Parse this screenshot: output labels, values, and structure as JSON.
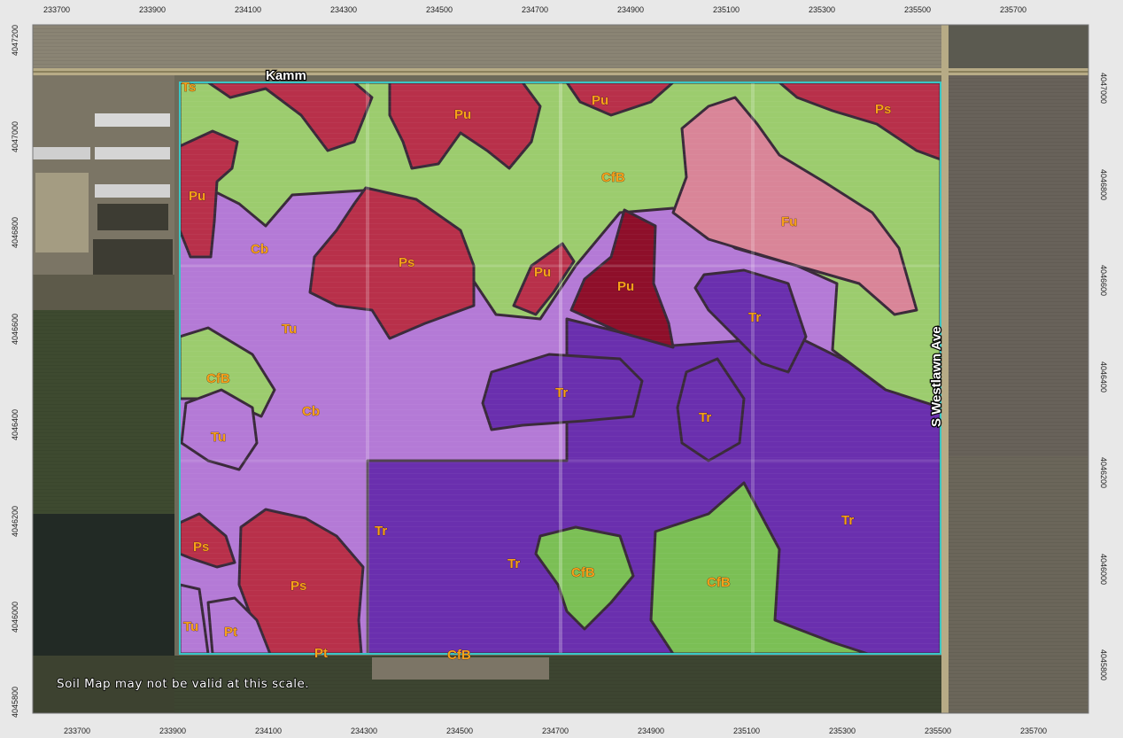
{
  "map": {
    "top_axis_ticks": [
      "233700",
      "233900",
      "234100",
      "234300",
      "234500",
      "234700",
      "234900",
      "235100",
      "235300",
      "235500",
      "235700"
    ],
    "bottom_axis_ticks": [
      "233700",
      "233900",
      "234100",
      "234300",
      "234500",
      "234700",
      "234900",
      "235100",
      "235300",
      "235500",
      "235700"
    ],
    "left_axis_ticks": [
      "4047200",
      "4047000",
      "4046800",
      "4046600",
      "4046400",
      "4046200",
      "4046000",
      "4045800"
    ],
    "right_axis_ticks": [
      "4047000",
      "4046800",
      "4046600",
      "4046400",
      "4046200",
      "4046000",
      "4045800"
    ],
    "roads": {
      "north": "Kamm",
      "east": "S Westlawn Ave"
    },
    "notice": "Soil Map may not be valid at this scale.",
    "soil_units": [
      {
        "symbol": "Ts",
        "group": "red"
      },
      {
        "symbol": "Pu",
        "group": "red"
      },
      {
        "symbol": "Pu",
        "group": "red"
      },
      {
        "symbol": "Ps",
        "group": "red"
      },
      {
        "symbol": "CfB",
        "group": "green"
      },
      {
        "symbol": "Pu",
        "group": "red"
      },
      {
        "symbol": "Cb",
        "group": "light-purple"
      },
      {
        "symbol": "Ps",
        "group": "red"
      },
      {
        "symbol": "Fu",
        "group": "pink"
      },
      {
        "symbol": "Pu",
        "group": "red"
      },
      {
        "symbol": "Pu",
        "group": "dark-red"
      },
      {
        "symbol": "Tr",
        "group": "purple"
      },
      {
        "symbol": "Tu",
        "group": "light-purple"
      },
      {
        "symbol": "CfB",
        "group": "green"
      },
      {
        "symbol": "Tr",
        "group": "purple"
      },
      {
        "symbol": "Cb",
        "group": "light-purple"
      },
      {
        "symbol": "Tr",
        "group": "purple"
      },
      {
        "symbol": "Tu",
        "group": "light-purple"
      },
      {
        "symbol": "Tr",
        "group": "purple"
      },
      {
        "symbol": "Ps",
        "group": "red"
      },
      {
        "symbol": "Tr",
        "group": "purple"
      },
      {
        "symbol": "Tr",
        "group": "purple"
      },
      {
        "symbol": "CfB",
        "group": "green"
      },
      {
        "symbol": "CfB",
        "group": "green"
      },
      {
        "symbol": "Ps",
        "group": "red"
      },
      {
        "symbol": "Tu",
        "group": "light-purple"
      },
      {
        "symbol": "Pt",
        "group": "light-purple"
      },
      {
        "symbol": "Pt",
        "group": "red"
      },
      {
        "symbol": "CfB",
        "group": "green"
      }
    ],
    "colors": {
      "red": "#b8304a",
      "dark-red": "#8e0f2a",
      "green": "#7bbf55",
      "light-purple": "#b47ad6",
      "purple": "#6a2fae",
      "pink": "#d98598",
      "aoi_outline": "#39c6c6",
      "label_fill": "#f7a11a"
    }
  }
}
